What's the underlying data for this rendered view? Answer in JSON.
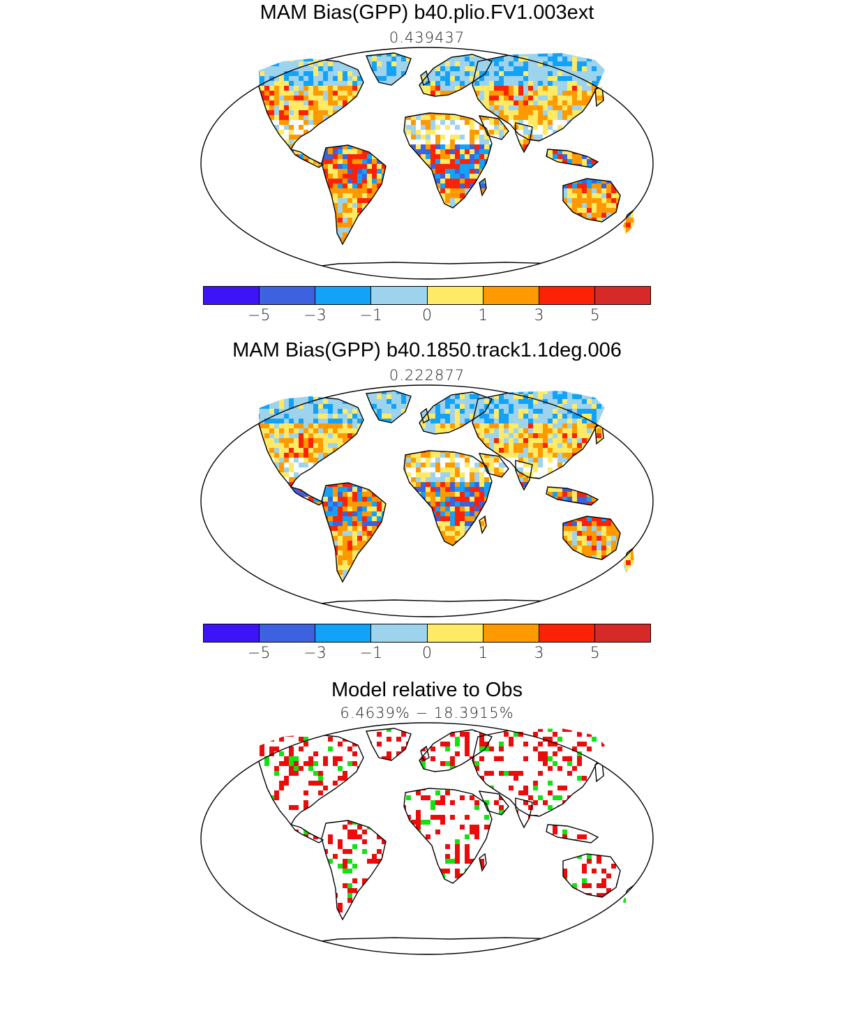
{
  "panels": [
    {
      "title": "MAM Bias(GPP) b40.plio.FV1.003ext",
      "subtitle": "0.439437",
      "type": "bias"
    },
    {
      "title": "MAM Bias(GPP) b40.1850.track1.1deg.006",
      "subtitle": "0.222877",
      "type": "bias"
    },
    {
      "title": "Model relative to Obs",
      "subtitle": "6.4639% − 18.3915%",
      "type": "relative"
    }
  ],
  "colorbar": {
    "colors": [
      "#3d14f5",
      "#3c62e0",
      "#12a3f8",
      "#9ed3ee",
      "#feea64",
      "#fe9a00",
      "#fb2206",
      "#d62a28"
    ],
    "tick_labels": [
      "−5",
      "−3",
      "−1",
      "0",
      "1",
      "3",
      "5"
    ]
  },
  "relative_colors": {
    "better": "#12e212",
    "worse": "#ec0b0b"
  }
}
